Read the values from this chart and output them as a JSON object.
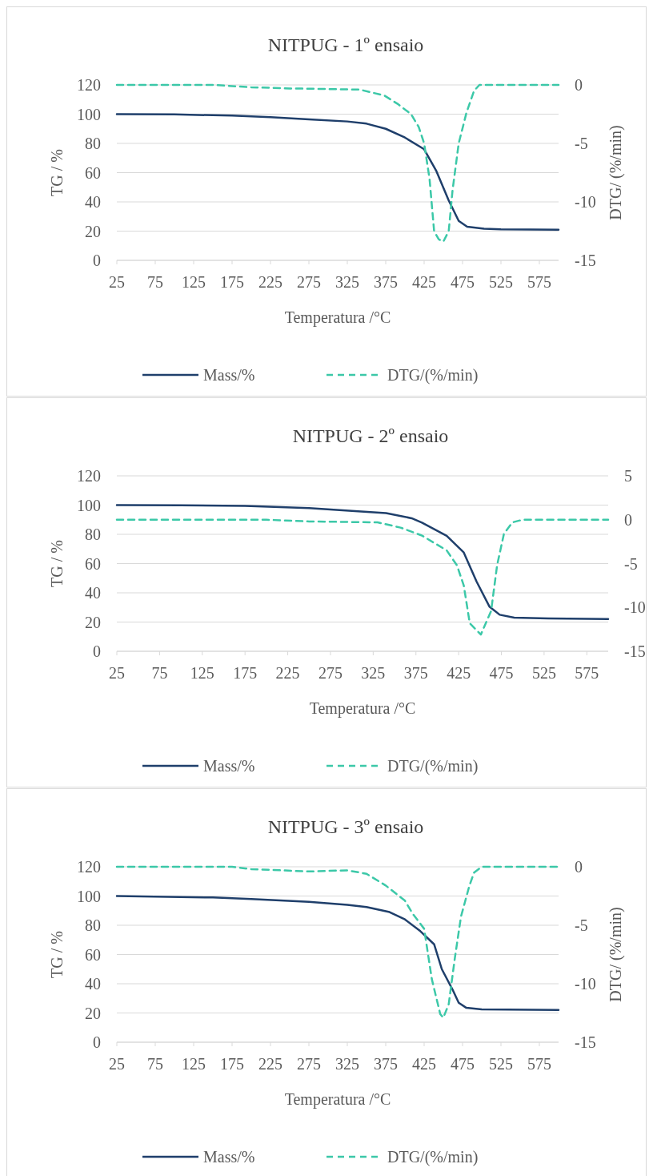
{
  "chart_data": [
    {
      "type": "line",
      "title": "NITPUG - 1º ensaio",
      "xlabel": "Temperatura /°C",
      "ylabel": "TG / %",
      "y2label": "DTG/ (%/min)",
      "xlim": [
        25,
        600
      ],
      "xticks": [
        25,
        75,
        125,
        175,
        225,
        275,
        325,
        375,
        425,
        475,
        525,
        575
      ],
      "ylim": [
        0,
        120
      ],
      "yticks": [
        0,
        20,
        40,
        60,
        80,
        100,
        120
      ],
      "y2lim": [
        -15,
        0
      ],
      "y2ticks": [
        -15,
        -10,
        -5,
        0
      ],
      "grid": "y",
      "legend": "bottom",
      "series": [
        {
          "name": "Mass/%",
          "color": "#1f3f6b",
          "line_style": "solid",
          "x": [
            25,
            100,
            175,
            225,
            275,
            325,
            350,
            375,
            400,
            425,
            441,
            457,
            470,
            481,
            503,
            525,
            600
          ],
          "values": [
            100,
            99.8,
            99,
            98,
            96.5,
            95,
            93.5,
            90,
            84,
            76,
            61,
            41,
            27,
            23,
            21.7,
            21.3,
            21
          ]
        },
        {
          "name": "DTG/(%/min)",
          "color": "#3cc8a8",
          "line_style": "dashed",
          "axis": "y2",
          "x": [
            25,
            150,
            200,
            250,
            300,
            341,
            373,
            390,
            408,
            418,
            425,
            432,
            438,
            444,
            450,
            457,
            462,
            470,
            480,
            490,
            497,
            600
          ],
          "values": [
            0,
            0,
            -0.2,
            -0.3,
            -0.35,
            -0.4,
            -0.9,
            -1.6,
            -2.5,
            -3.6,
            -5,
            -8,
            -12.5,
            -13.2,
            -13.4,
            -12.5,
            -9,
            -5,
            -2.4,
            -0.5,
            0,
            0
          ]
        }
      ]
    },
    {
      "type": "line",
      "title": "NITPUG - 2º ensaio",
      "xlabel": "Temperatura /°C",
      "ylabel": "TG / %",
      "xlim": [
        25,
        600
      ],
      "xticks": [
        25,
        75,
        125,
        175,
        225,
        275,
        325,
        375,
        425,
        475,
        525,
        575
      ],
      "ylim": [
        0,
        120
      ],
      "yticks": [
        0,
        20,
        40,
        60,
        80,
        100,
        120
      ],
      "y2lim": [
        -15,
        5
      ],
      "y2ticks": [
        -15,
        -10,
        -5,
        0,
        5
      ],
      "grid": "y",
      "legend": "bottom",
      "series": [
        {
          "name": "Mass/%",
          "color": "#1f3f6b",
          "line_style": "solid",
          "x": [
            25,
            100,
            175,
            250,
            300,
            340,
            370,
            382,
            411,
            431,
            446,
            461,
            473,
            490,
            530,
            600
          ],
          "values": [
            100,
            99.8,
            99.5,
            98,
            96,
            94.5,
            91,
            88,
            79,
            67.6,
            47.7,
            30.6,
            25,
            23,
            22.5,
            22
          ]
        },
        {
          "name": "DTG/(%/min)",
          "color": "#3cc8a8",
          "line_style": "dashed",
          "axis": "y2",
          "x": [
            25,
            200,
            250,
            330,
            357,
            382,
            411,
            423,
            431,
            438,
            451,
            463,
            470,
            478,
            488,
            500,
            600
          ],
          "values": [
            0,
            0,
            -0.2,
            -0.3,
            -0.9,
            -1.8,
            -3.5,
            -5.2,
            -7.5,
            -11.8,
            -13.1,
            -10.4,
            -5.2,
            -1.6,
            -0.3,
            0,
            0
          ]
        }
      ]
    },
    {
      "type": "line",
      "title": "NITPUG - 3º ensaio",
      "xlabel": "Temperatura /°C",
      "ylabel": "TG / %",
      "y2label": "DTG/ (%/min)",
      "xlim": [
        25,
        600
      ],
      "xticks": [
        25,
        75,
        125,
        175,
        225,
        275,
        325,
        375,
        425,
        475,
        525,
        575
      ],
      "ylim": [
        0,
        120
      ],
      "yticks": [
        0,
        20,
        40,
        60,
        80,
        100,
        120
      ],
      "y2lim": [
        -15,
        0
      ],
      "y2ticks": [
        -15,
        -10,
        -5,
        0
      ],
      "grid": "y",
      "legend": "bottom",
      "series": [
        {
          "name": "Mass/%",
          "color": "#1f3f6b",
          "line_style": "solid",
          "x": [
            25,
            150,
            200,
            275,
            325,
            350,
            380,
            400,
            420,
            438,
            448,
            462,
            470,
            480,
            500,
            600
          ],
          "values": [
            100,
            99,
            98,
            96,
            94,
            92.5,
            89,
            84,
            76,
            67,
            50,
            36,
            27,
            23.5,
            22.5,
            22
          ]
        },
        {
          "name": "DTG/(%/min)",
          "color": "#3cc8a8",
          "line_style": "dashed",
          "axis": "y2",
          "x": [
            25,
            175,
            200,
            275,
            325,
            350,
            375,
            400,
            410,
            425,
            435,
            446,
            450,
            457,
            465,
            473,
            484,
            490,
            500,
            600
          ],
          "values": [
            0,
            0,
            -0.2,
            -0.4,
            -0.3,
            -0.6,
            -1.6,
            -2.9,
            -4,
            -5.3,
            -9.6,
            -12.6,
            -12.9,
            -11.75,
            -7.8,
            -4.25,
            -1.6,
            -0.5,
            0,
            0
          ]
        }
      ]
    }
  ]
}
